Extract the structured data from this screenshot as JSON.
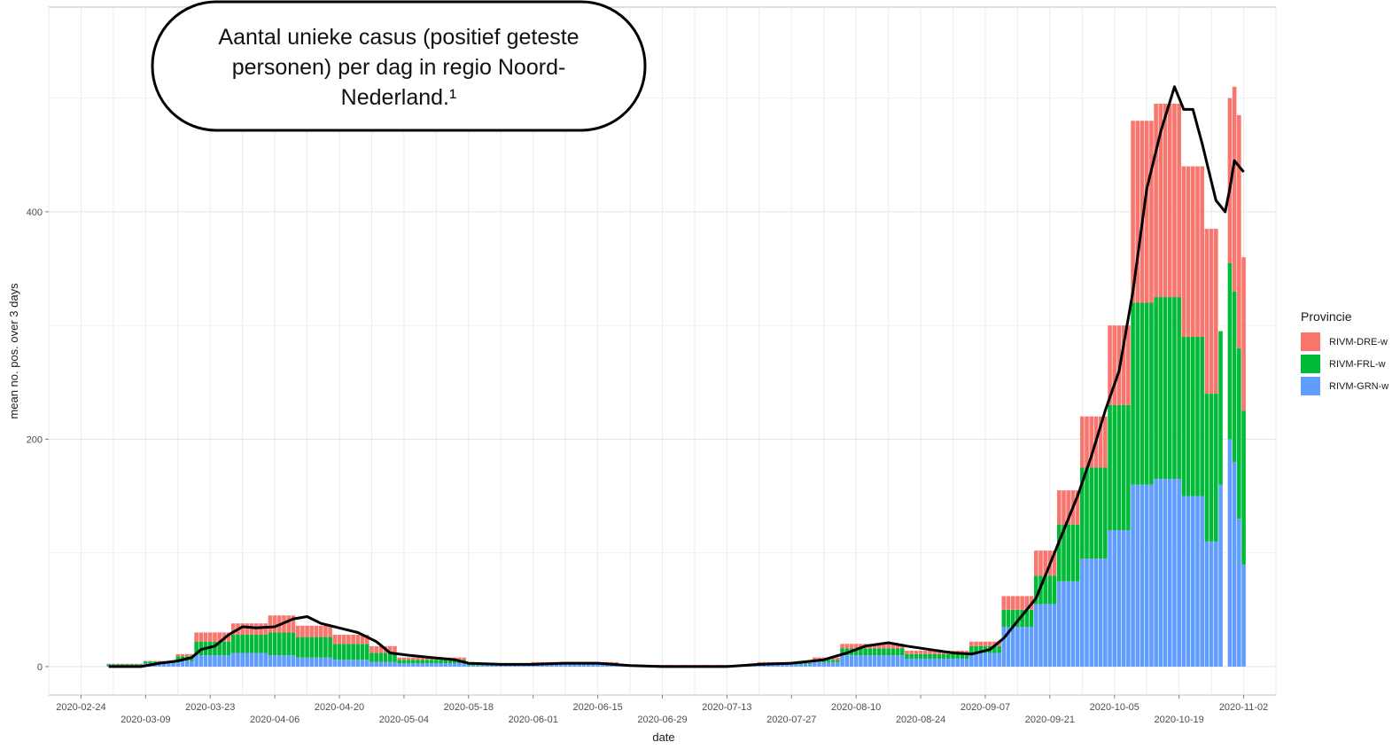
{
  "chart_data": {
    "type": "bar",
    "stacked": true,
    "xlabel": "date",
    "ylabel": "mean no. pos. over 3 days",
    "x_ticks": [
      "2020-02-24",
      "2020-03-09",
      "2020-03-23",
      "2020-04-06",
      "2020-04-20",
      "2020-05-04",
      "2020-05-18",
      "2020-06-01",
      "2020-06-15",
      "2020-06-29",
      "2020-07-13",
      "2020-07-27",
      "2020-08-10",
      "2020-08-24",
      "2020-09-07",
      "2020-09-21",
      "2020-10-05",
      "2020-10-19",
      "2020-11-02"
    ],
    "y_ticks": [
      0,
      200,
      400
    ],
    "ylim": [
      -25,
      580
    ],
    "xlim": [
      "2020-02-17",
      "2020-11-09"
    ],
    "grid": true,
    "legend": {
      "title": "Provincie",
      "position": "right"
    },
    "series": [
      {
        "name": "RIVM-DRE-w",
        "color": "#F8766D"
      },
      {
        "name": "RIVM-FRL-w",
        "color": "#00BA38"
      },
      {
        "name": "RIVM-GRN-w",
        "color": "#619CFF"
      }
    ],
    "segments": [
      {
        "start": "2020-03-01",
        "end": "2020-03-08",
        "grn": 1,
        "frl": 1,
        "dre": 0.5
      },
      {
        "start": "2020-03-09",
        "end": "2020-03-15",
        "grn": 3,
        "frl": 1.5,
        "dre": 0.5
      },
      {
        "start": "2020-03-16",
        "end": "2020-03-19",
        "grn": 5,
        "frl": 4,
        "dre": 2
      },
      {
        "start": "2020-03-20",
        "end": "2020-03-27",
        "grn": 10,
        "frl": 12,
        "dre": 8
      },
      {
        "start": "2020-03-28",
        "end": "2020-04-04",
        "grn": 12,
        "frl": 16,
        "dre": 10
      },
      {
        "start": "2020-04-05",
        "end": "2020-04-10",
        "grn": 10,
        "frl": 20,
        "dre": 15
      },
      {
        "start": "2020-04-11",
        "end": "2020-04-18",
        "grn": 8,
        "frl": 18,
        "dre": 10
      },
      {
        "start": "2020-04-19",
        "end": "2020-04-26",
        "grn": 6,
        "frl": 14,
        "dre": 8
      },
      {
        "start": "2020-04-27",
        "end": "2020-05-02",
        "grn": 4,
        "frl": 8,
        "dre": 6
      },
      {
        "start": "2020-05-03",
        "end": "2020-05-17",
        "grn": 3,
        "frl": 3,
        "dre": 2
      },
      {
        "start": "2020-05-18",
        "end": "2020-05-31",
        "grn": 1,
        "frl": 1,
        "dre": 1
      },
      {
        "start": "2020-06-01",
        "end": "2020-06-19",
        "grn": 2,
        "frl": 1,
        "dre": 1
      },
      {
        "start": "2020-06-20",
        "end": "2020-07-19",
        "grn": 0.5,
        "frl": 0.5,
        "dre": 0.5
      },
      {
        "start": "2020-07-20",
        "end": "2020-07-31",
        "grn": 2,
        "frl": 1,
        "dre": 1
      },
      {
        "start": "2020-08-01",
        "end": "2020-08-06",
        "grn": 4,
        "frl": 2,
        "dre": 2
      },
      {
        "start": "2020-08-07",
        "end": "2020-08-20",
        "grn": 10,
        "frl": 6,
        "dre": 4
      },
      {
        "start": "2020-08-21",
        "end": "2020-09-03",
        "grn": 7,
        "frl": 4,
        "dre": 3
      },
      {
        "start": "2020-09-04",
        "end": "2020-09-10",
        "grn": 12,
        "frl": 6,
        "dre": 4
      },
      {
        "start": "2020-09-11",
        "end": "2020-09-17",
        "grn": 35,
        "frl": 15,
        "dre": 12
      },
      {
        "start": "2020-09-18",
        "end": "2020-09-22",
        "grn": 55,
        "frl": 25,
        "dre": 22
      },
      {
        "start": "2020-09-23",
        "end": "2020-09-27",
        "grn": 75,
        "frl": 50,
        "dre": 30
      },
      {
        "start": "2020-09-28",
        "end": "2020-10-03",
        "grn": 95,
        "frl": 80,
        "dre": 45
      },
      {
        "start": "2020-10-04",
        "end": "2020-10-08",
        "grn": 120,
        "frl": 110,
        "dre": 70
      },
      {
        "start": "2020-10-09",
        "end": "2020-10-13",
        "grn": 160,
        "frl": 160,
        "dre": 160
      },
      {
        "start": "2020-10-14",
        "end": "2020-10-19",
        "grn": 165,
        "frl": 160,
        "dre": 170
      },
      {
        "start": "2020-10-20",
        "end": "2020-10-24",
        "grn": 150,
        "frl": 140,
        "dre": 150
      },
      {
        "start": "2020-10-25",
        "end": "2020-10-27",
        "grn": 110,
        "frl": 130,
        "dre": 145
      },
      {
        "start": "2020-10-28",
        "end": "2020-10-28",
        "grn": 160,
        "frl": 135,
        "dre": 0
      },
      {
        "start": "2020-10-30",
        "end": "2020-10-30",
        "grn": 200,
        "frl": 155,
        "dre": 145
      },
      {
        "start": "2020-10-31",
        "end": "2020-10-31",
        "grn": 180,
        "frl": 150,
        "dre": 180
      },
      {
        "start": "2020-11-01",
        "end": "2020-11-01",
        "grn": 130,
        "frl": 150,
        "dre": 205
      },
      {
        "start": "2020-11-02",
        "end": "2020-11-02",
        "grn": 90,
        "frl": 135,
        "dre": 135
      }
    ],
    "line": {
      "color": "#000000",
      "points": [
        [
          "2020-03-01",
          0
        ],
        [
          "2020-03-08",
          0
        ],
        [
          "2020-03-12",
          3
        ],
        [
          "2020-03-16",
          5
        ],
        [
          "2020-03-19",
          8
        ],
        [
          "2020-03-21",
          15
        ],
        [
          "2020-03-24",
          18
        ],
        [
          "2020-03-27",
          28
        ],
        [
          "2020-03-30",
          35
        ],
        [
          "2020-04-02",
          34
        ],
        [
          "2020-04-06",
          35
        ],
        [
          "2020-04-10",
          42
        ],
        [
          "2020-04-13",
          44
        ],
        [
          "2020-04-16",
          38
        ],
        [
          "2020-04-20",
          34
        ],
        [
          "2020-04-24",
          30
        ],
        [
          "2020-04-28",
          22
        ],
        [
          "2020-05-01",
          12
        ],
        [
          "2020-05-05",
          10
        ],
        [
          "2020-05-10",
          8
        ],
        [
          "2020-05-15",
          6
        ],
        [
          "2020-05-18",
          3
        ],
        [
          "2020-05-25",
          2
        ],
        [
          "2020-06-01",
          2
        ],
        [
          "2020-06-08",
          3
        ],
        [
          "2020-06-15",
          3
        ],
        [
          "2020-06-22",
          1
        ],
        [
          "2020-06-29",
          0
        ],
        [
          "2020-07-06",
          0
        ],
        [
          "2020-07-13",
          0
        ],
        [
          "2020-07-20",
          2
        ],
        [
          "2020-07-27",
          3
        ],
        [
          "2020-08-03",
          6
        ],
        [
          "2020-08-08",
          12
        ],
        [
          "2020-08-12",
          18
        ],
        [
          "2020-08-17",
          21
        ],
        [
          "2020-08-21",
          18
        ],
        [
          "2020-08-26",
          15
        ],
        [
          "2020-08-31",
          12
        ],
        [
          "2020-09-04",
          11
        ],
        [
          "2020-09-08",
          15
        ],
        [
          "2020-09-11",
          25
        ],
        [
          "2020-09-14",
          40
        ],
        [
          "2020-09-18",
          60
        ],
        [
          "2020-09-21",
          90
        ],
        [
          "2020-09-24",
          120
        ],
        [
          "2020-09-27",
          150
        ],
        [
          "2020-09-30",
          185
        ],
        [
          "2020-10-03",
          225
        ],
        [
          "2020-10-06",
          260
        ],
        [
          "2020-10-09",
          330
        ],
        [
          "2020-10-12",
          420
        ],
        [
          "2020-10-15",
          470
        ],
        [
          "2020-10-18",
          510
        ],
        [
          "2020-10-20",
          490
        ],
        [
          "2020-10-22",
          490
        ],
        [
          "2020-10-24",
          460
        ],
        [
          "2020-10-27",
          410
        ],
        [
          "2020-10-29",
          400
        ],
        [
          "2020-10-30",
          420
        ],
        [
          "2020-10-31",
          445
        ],
        [
          "2020-11-01",
          440
        ],
        [
          "2020-11-02",
          435
        ]
      ]
    },
    "annotation": "Aantal unieke casus (positief geteste personen) per dag in regio Noord-Nederland.¹"
  },
  "callout": {
    "line1": "Aantal unieke casus (positief geteste",
    "line2": "personen) per dag in regio Noord-",
    "line3": "Nederland.¹"
  }
}
